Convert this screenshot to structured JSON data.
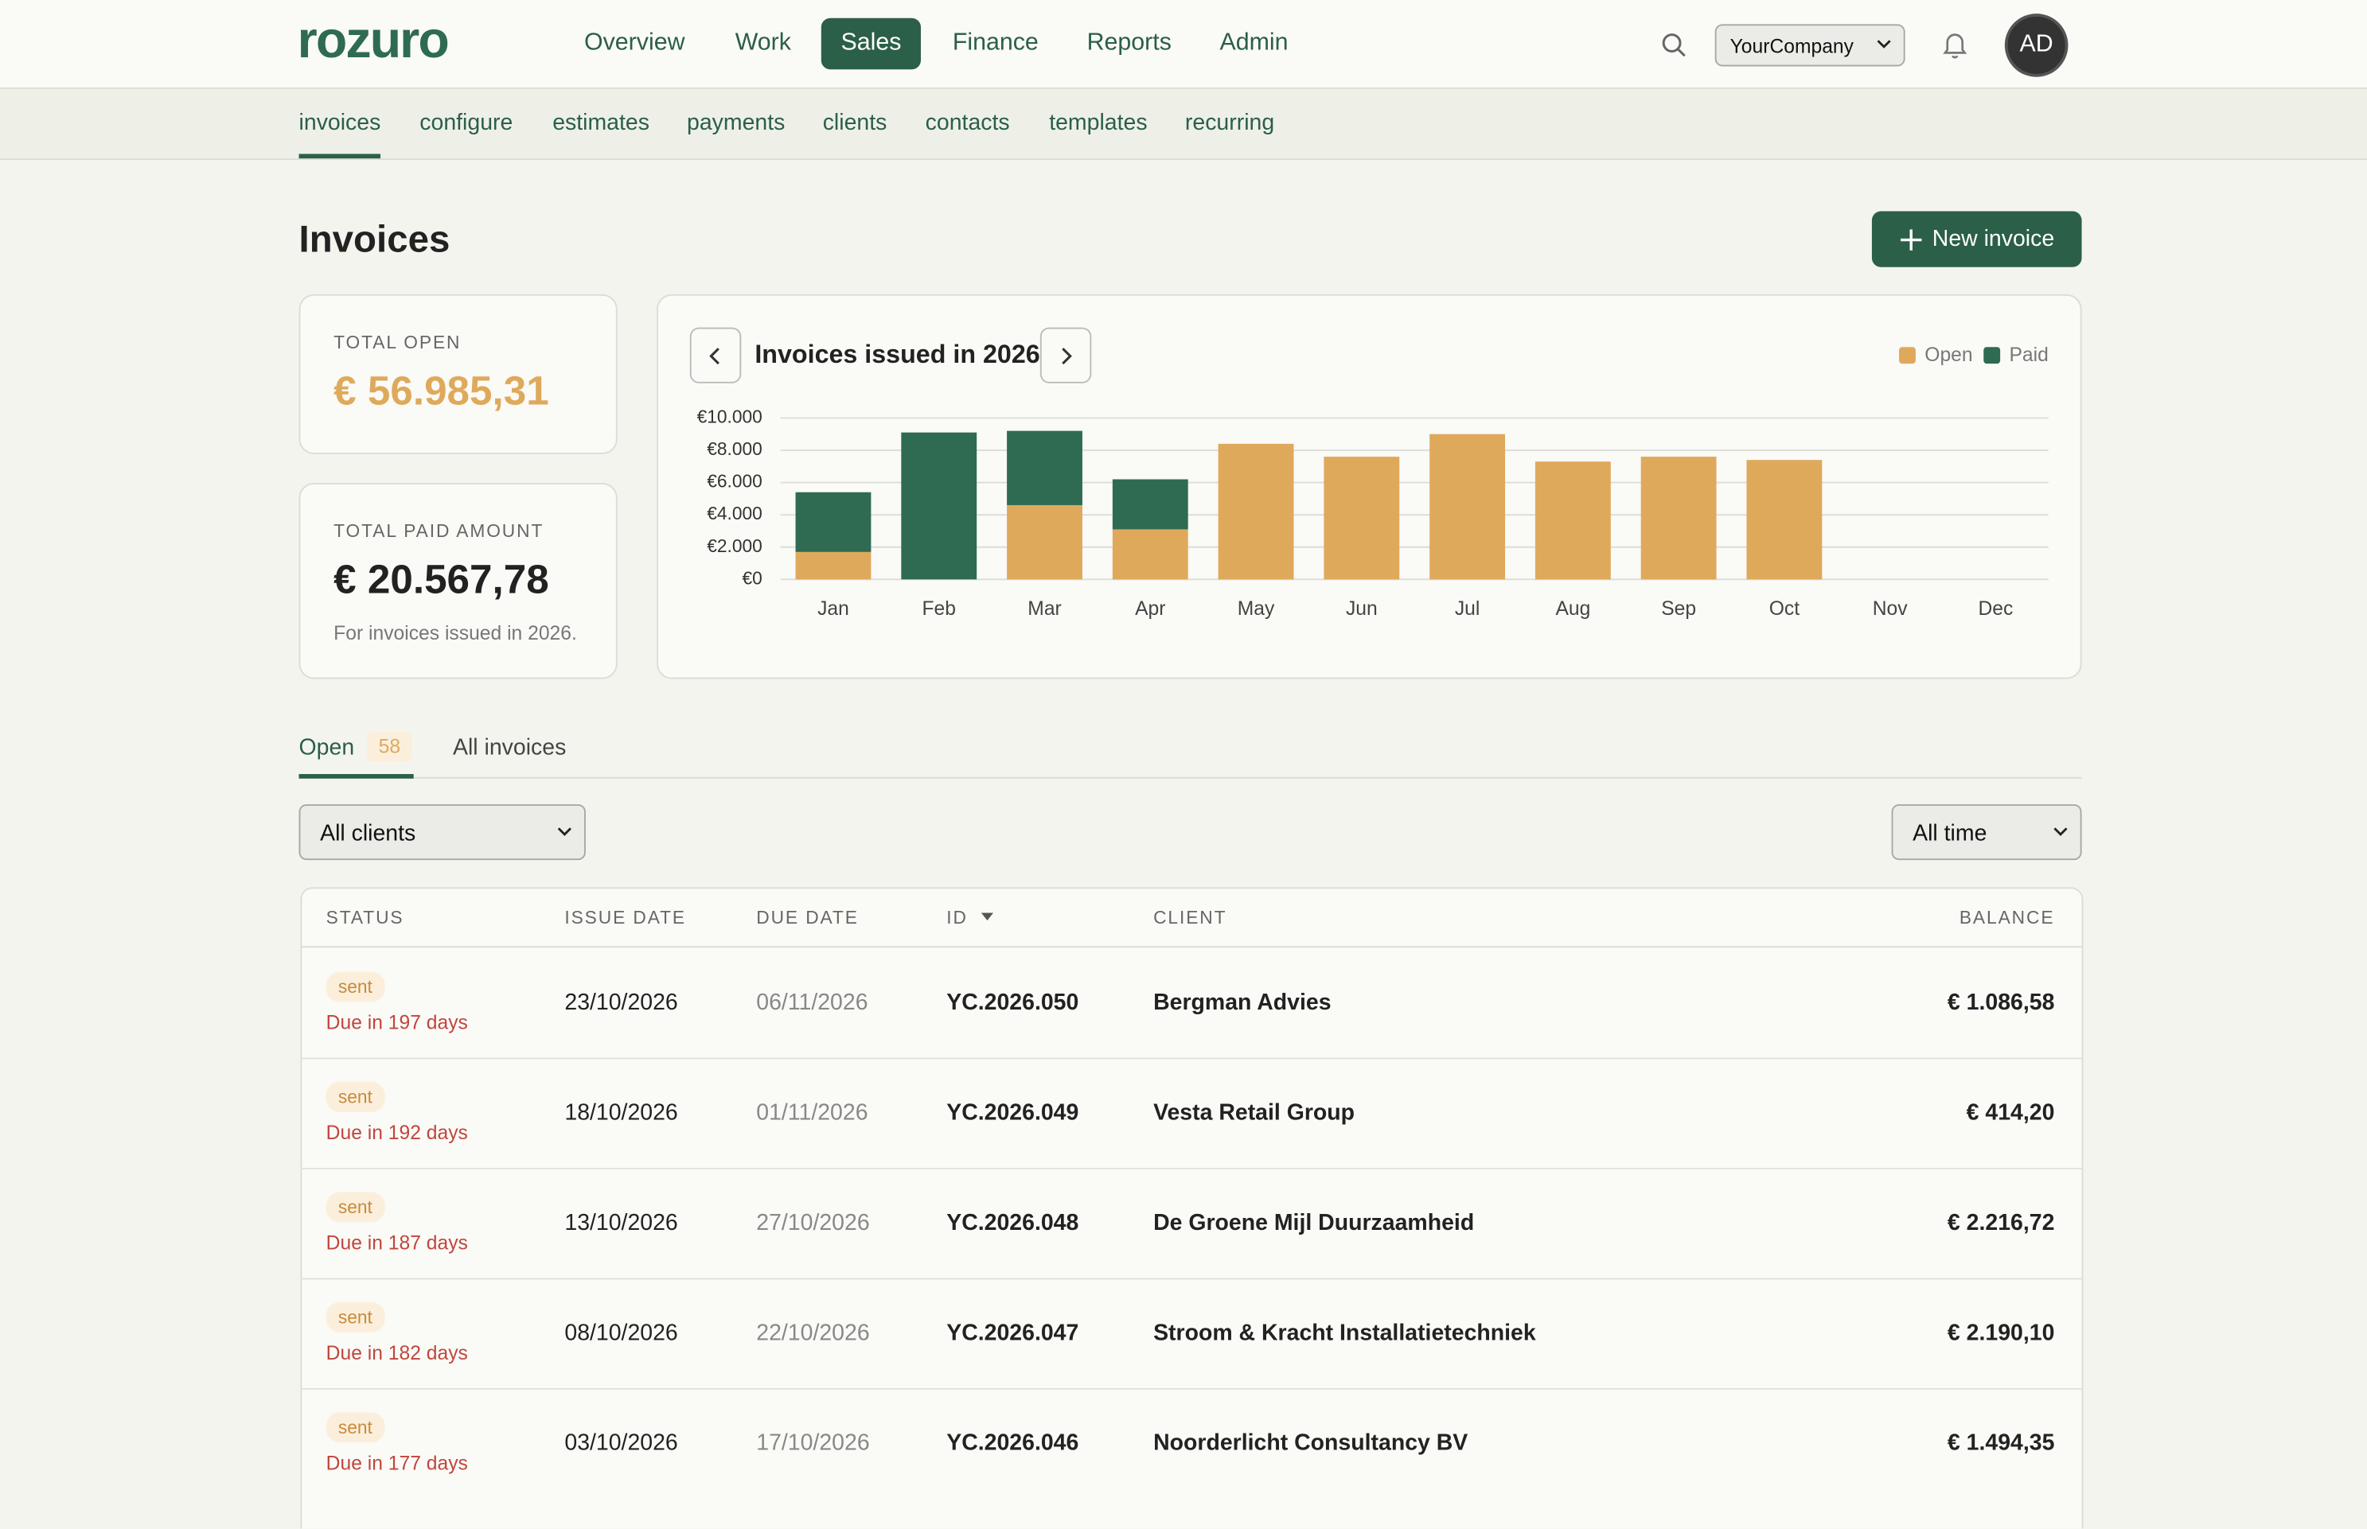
{
  "header": {
    "logo": "rozuro",
    "nav": [
      "Overview",
      "Work",
      "Sales",
      "Finance",
      "Reports",
      "Admin"
    ],
    "company": "YourCompany",
    "avatar": "AD"
  },
  "subnav": [
    "invoices",
    "configure",
    "estimates",
    "payments",
    "clients",
    "contacts",
    "templates",
    "recurring"
  ],
  "page": {
    "title": "Invoices",
    "new_button": "New invoice"
  },
  "cards": {
    "total_open": {
      "label": "TOTAL OPEN",
      "value": "€ 56.985,31"
    },
    "total_paid": {
      "label": "TOTAL PAID AMOUNT",
      "value": "€ 20.567,78",
      "note": "For invoices issued in 2026."
    }
  },
  "chart_data": {
    "type": "bar",
    "stacked": true,
    "title": "Invoices issued in 2026",
    "categories": [
      "Jan",
      "Feb",
      "Mar",
      "Apr",
      "May",
      "Jun",
      "Jul",
      "Aug",
      "Sep",
      "Oct",
      "Nov",
      "Dec"
    ],
    "series": [
      {
        "name": "Open",
        "color": "#dfa95c",
        "values": [
          1700,
          0,
          4600,
          3100,
          8400,
          7600,
          9000,
          7300,
          7600,
          7400,
          0,
          0
        ]
      },
      {
        "name": "Paid",
        "color": "#2e6b52",
        "values": [
          3700,
          9100,
          4600,
          3100,
          0,
          0,
          0,
          0,
          0,
          0,
          0,
          0
        ]
      }
    ],
    "ylim": [
      0,
      10000
    ],
    "yticks": [
      {
        "value": 0,
        "label": "€0"
      },
      {
        "value": 2000,
        "label": "€2.000"
      },
      {
        "value": 4000,
        "label": "€4.000"
      },
      {
        "value": 6000,
        "label": "€6.000"
      },
      {
        "value": 8000,
        "label": "€8.000"
      },
      {
        "value": 10000,
        "label": "€10.000"
      }
    ],
    "grid": true
  },
  "tabs": {
    "open": "Open",
    "open_count": 58,
    "all": "All invoices"
  },
  "filters": {
    "client": "All clients",
    "period": "All time"
  },
  "table": {
    "columns": [
      "STATUS",
      "ISSUE DATE",
      "DUE DATE",
      "ID",
      "CLIENT",
      "BALANCE"
    ],
    "rows": [
      {
        "status": "sent",
        "due_note": "Due in 197 days",
        "issue": "23/10/2026",
        "due": "06/11/2026",
        "id": "YC.2026.050",
        "client": "Bergman Advies",
        "balance": "€ 1.086,58"
      },
      {
        "status": "sent",
        "due_note": "Due in 192 days",
        "issue": "18/10/2026",
        "due": "01/11/2026",
        "id": "YC.2026.049",
        "client": "Vesta Retail Group",
        "balance": "€ 414,20"
      },
      {
        "status": "sent",
        "due_note": "Due in 187 days",
        "issue": "13/10/2026",
        "due": "27/10/2026",
        "id": "YC.2026.048",
        "client": "De Groene Mijl Duurzaamheid",
        "balance": "€ 2.216,72"
      },
      {
        "status": "sent",
        "due_note": "Due in 182 days",
        "issue": "08/10/2026",
        "due": "22/10/2026",
        "id": "YC.2026.047",
        "client": "Stroom & Kracht Installatietechniek",
        "balance": "€ 2.190,10"
      },
      {
        "status": "sent",
        "due_note": "Due in 177 days",
        "issue": "03/10/2026",
        "due": "17/10/2026",
        "id": "YC.2026.046",
        "client": "Noorderlicht Consultancy BV",
        "balance": "€ 1.494,35"
      }
    ]
  }
}
